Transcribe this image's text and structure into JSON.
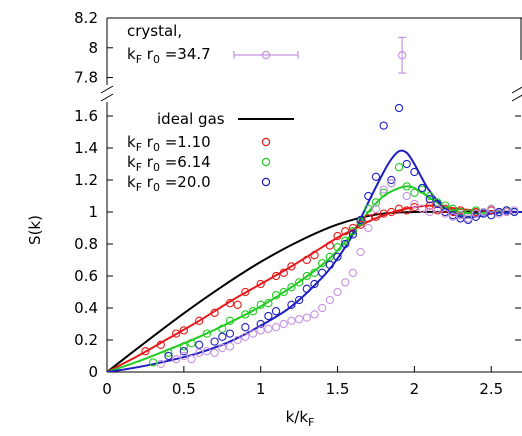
{
  "chart_data": {
    "type": "scatter",
    "xlabel_main": "k/k",
    "xlabel_sub": "F",
    "ylabel": "S(k)",
    "xlim": [
      0,
      2.7
    ],
    "ylim_lower": [
      0,
      1.7
    ],
    "ylim_upper": [
      7.75,
      8.2
    ],
    "x_ticks": [
      "0",
      "0.5",
      "1",
      "1.5",
      "2",
      "2.5"
    ],
    "x_tick_values": [
      0,
      0.5,
      1,
      1.5,
      2,
      2.5
    ],
    "y_ticks_lower": [
      "0",
      "0.2",
      "0.4",
      "0.6",
      "0.8",
      "1",
      "1.2",
      "1.4",
      "1.6"
    ],
    "y_tick_values_lower": [
      0,
      0.2,
      0.4,
      0.6,
      0.8,
      1.0,
      1.2,
      1.4,
      1.6
    ],
    "y_ticks_upper": [
      "7.8",
      "8",
      "8.2"
    ],
    "y_tick_values_upper": [
      7.8,
      8.0,
      8.2
    ],
    "legend_upper": {
      "line1": "crystal,",
      "k": "k",
      "F": "F",
      "r": " r",
      "zero": "0",
      "value": " =34.7"
    },
    "legend_lower": {
      "ideal": "ideal gas",
      "k": "k",
      "F": "F",
      "r": " r",
      "zero": "0",
      "v1": " =1.10",
      "v2": " =6.14",
      "v3": " =20.0"
    },
    "colors": {
      "ideal": "#000000",
      "r110": "#e41a1c",
      "r614": "#22cc22",
      "r200": "#1f1fc0",
      "crystal": "#c594e3"
    },
    "crystal_point": {
      "x": 1.92,
      "y": 7.95,
      "y_err": 0.12
    },
    "crystal_legend_err": 0.35,
    "series": [
      {
        "name": "ideal gas",
        "kind": "line",
        "color_key": "ideal",
        "x": [
          0,
          0.25,
          0.5,
          0.75,
          1.0,
          1.25,
          1.5,
          1.75,
          2.0,
          2.25,
          2.5,
          2.7
        ],
        "y": [
          0,
          0.186,
          0.367,
          0.535,
          0.688,
          0.818,
          0.922,
          0.984,
          1.0,
          1.0,
          1.0,
          1.0
        ]
      },
      {
        "name": "kF r0 = 1.10 fit",
        "kind": "line",
        "color_key": "r110",
        "x": [
          0,
          0.2,
          0.4,
          0.6,
          0.8,
          1.0,
          1.2,
          1.4,
          1.5,
          1.6,
          1.7,
          1.8,
          1.9,
          2.0,
          2.1,
          2.2,
          2.4,
          2.7
        ],
        "y": [
          0,
          0.1,
          0.21,
          0.32,
          0.44,
          0.55,
          0.66,
          0.78,
          0.84,
          0.89,
          0.94,
          0.98,
          1.01,
          1.03,
          1.04,
          1.03,
          1.01,
          1.0
        ]
      },
      {
        "name": "kF r0 = 6.14 fit",
        "kind": "line",
        "color_key": "r614",
        "x": [
          0,
          0.2,
          0.4,
          0.6,
          0.8,
          1.0,
          1.2,
          1.4,
          1.5,
          1.6,
          1.7,
          1.8,
          1.9,
          1.95,
          2.0,
          2.1,
          2.2,
          2.3,
          2.4,
          2.5,
          2.7
        ],
        "y": [
          0,
          0.065,
          0.14,
          0.22,
          0.31,
          0.41,
          0.53,
          0.67,
          0.76,
          0.87,
          1.0,
          1.1,
          1.15,
          1.16,
          1.15,
          1.09,
          1.03,
          1.0,
          0.99,
          1.0,
          1.0
        ]
      },
      {
        "name": "kF r0 = 20.0 fit",
        "kind": "line",
        "color_key": "r200",
        "x": [
          0,
          0.2,
          0.4,
          0.6,
          0.8,
          1.0,
          1.2,
          1.4,
          1.5,
          1.6,
          1.7,
          1.8,
          1.85,
          1.9,
          1.95,
          2.0,
          2.05,
          2.1,
          2.2,
          2.3,
          2.4,
          2.5,
          2.6,
          2.7
        ],
        "y": [
          0,
          0.03,
          0.07,
          0.12,
          0.19,
          0.29,
          0.41,
          0.59,
          0.71,
          0.86,
          1.06,
          1.25,
          1.33,
          1.38,
          1.37,
          1.3,
          1.21,
          1.13,
          1.02,
          0.97,
          0.97,
          0.99,
          1.0,
          1.0
        ]
      },
      {
        "name": "kF r0 = 1.10",
        "kind": "points",
        "color_key": "r110",
        "x": [
          0.25,
          0.35,
          0.45,
          0.5,
          0.6,
          0.7,
          0.8,
          0.85,
          0.9,
          1.0,
          1.1,
          1.15,
          1.2,
          1.3,
          1.35,
          1.45,
          1.5,
          1.55,
          1.6,
          1.65,
          1.7,
          1.75,
          1.8,
          1.85,
          1.9,
          1.95,
          2.0,
          2.05,
          2.1,
          2.15,
          2.2,
          2.25,
          2.3,
          2.35,
          2.4,
          2.5,
          2.6
        ],
        "y": [
          0.13,
          0.17,
          0.24,
          0.26,
          0.32,
          0.37,
          0.43,
          0.42,
          0.5,
          0.55,
          0.6,
          0.62,
          0.66,
          0.7,
          0.73,
          0.79,
          0.85,
          0.88,
          0.9,
          0.92,
          0.96,
          0.97,
          0.99,
          1.0,
          1.02,
          1.01,
          1.03,
          1.02,
          1.04,
          1.01,
          1.02,
          1.0,
          1.01,
          0.99,
          1.0,
          1.01,
          1.0
        ]
      },
      {
        "name": "kF r0 = 6.14",
        "kind": "points",
        "color_key": "r614",
        "x": [
          0.3,
          0.4,
          0.5,
          0.55,
          0.65,
          0.75,
          0.8,
          0.9,
          0.95,
          1.0,
          1.05,
          1.1,
          1.15,
          1.2,
          1.25,
          1.3,
          1.35,
          1.4,
          1.45,
          1.5,
          1.55,
          1.6,
          1.65,
          1.7,
          1.75,
          1.8,
          1.85,
          1.9,
          1.95,
          2.0,
          2.05,
          2.1,
          2.15,
          2.2,
          2.25,
          2.3,
          2.35,
          2.4,
          2.45,
          2.5,
          2.55,
          2.6,
          2.65
        ],
        "y": [
          0.06,
          0.12,
          0.16,
          0.18,
          0.24,
          0.27,
          0.32,
          0.36,
          0.38,
          0.42,
          0.43,
          0.48,
          0.5,
          0.53,
          0.56,
          0.6,
          0.62,
          0.68,
          0.72,
          0.78,
          0.82,
          0.88,
          0.94,
          1.02,
          1.06,
          1.12,
          1.18,
          1.28,
          1.16,
          1.12,
          1.14,
          1.1,
          1.06,
          1.04,
          1.02,
          1.0,
          0.99,
          1.01,
          1.0,
          1.02,
          1.0,
          1.01,
          1.0
        ]
      },
      {
        "name": "kF r0 = 20.0",
        "kind": "points",
        "color_key": "r200",
        "x": [
          0.4,
          0.5,
          0.6,
          0.7,
          0.75,
          0.8,
          0.9,
          1.0,
          1.05,
          1.1,
          1.2,
          1.25,
          1.3,
          1.35,
          1.4,
          1.45,
          1.5,
          1.55,
          1.6,
          1.65,
          1.7,
          1.75,
          1.8,
          1.85,
          1.9,
          1.95,
          2.0,
          2.05,
          2.1,
          2.15,
          2.2,
          2.25,
          2.3,
          2.35,
          2.4,
          2.45,
          2.5,
          2.55,
          2.6,
          2.65
        ],
        "y": [
          0.1,
          0.13,
          0.17,
          0.19,
          0.22,
          0.24,
          0.28,
          0.3,
          0.35,
          0.38,
          0.42,
          0.45,
          0.52,
          0.55,
          0.62,
          0.67,
          0.72,
          0.8,
          0.86,
          0.95,
          1.1,
          1.22,
          1.54,
          1.2,
          1.65,
          1.3,
          1.25,
          1.15,
          1.08,
          1.05,
          1.0,
          0.98,
          0.96,
          0.95,
          0.97,
          0.99,
          0.98,
          1.0,
          1.01,
          1.0
        ]
      },
      {
        "name": "crystal kF r0 = 34.7",
        "kind": "points",
        "color_key": "crystal",
        "x": [
          0.35,
          0.45,
          0.5,
          0.55,
          0.6,
          0.65,
          0.7,
          0.75,
          0.8,
          0.85,
          0.9,
          0.95,
          1.0,
          1.05,
          1.1,
          1.15,
          1.2,
          1.25,
          1.3,
          1.35,
          1.4,
          1.45,
          1.5,
          1.55,
          1.6,
          1.65,
          1.7,
          1.75,
          1.8,
          1.85,
          1.95,
          2.0,
          2.05,
          2.1,
          2.15,
          2.2,
          2.25,
          2.3,
          2.35,
          2.4,
          2.45,
          2.5,
          2.55,
          2.6,
          2.65
        ],
        "y": [
          0.05,
          0.08,
          0.1,
          0.08,
          0.12,
          0.13,
          0.12,
          0.15,
          0.16,
          0.2,
          0.22,
          0.24,
          0.26,
          0.27,
          0.28,
          0.3,
          0.32,
          0.33,
          0.34,
          0.36,
          0.4,
          0.45,
          0.5,
          0.56,
          0.62,
          0.75,
          0.9,
          1.02,
          1.14,
          1.18,
          1.1,
          1.05,
          1.02,
          1.0,
          1.02,
          0.99,
          0.97,
          0.98,
          0.96,
          0.99,
          1.0,
          1.02,
          0.99,
          1.0,
          1.01
        ]
      }
    ]
  }
}
